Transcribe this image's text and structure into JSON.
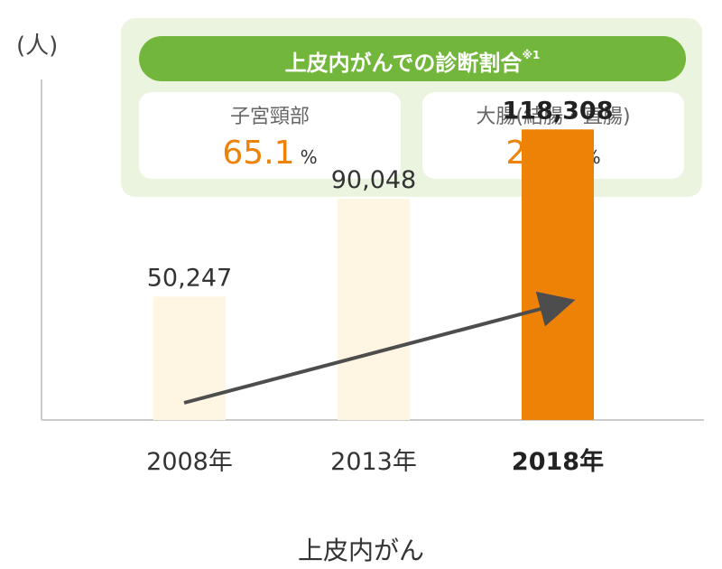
{
  "y_unit": "(人)",
  "callout": {
    "title": "上皮内がんでの診断割合",
    "title_note": "※1",
    "items": [
      {
        "label": "子宮頸部",
        "value": "65.1",
        "unit": "%"
      },
      {
        "label": "大腸(結腸・直腸)",
        "value": "22.4",
        "unit": "%"
      }
    ]
  },
  "colors": {
    "bar_light": "#fff5e3",
    "bar_highlight": "#ee8207",
    "banner": "#72b73c",
    "callout_bg": "#eaf4de",
    "accent_text": "#ee8207",
    "arrow": "#4d4d4d"
  },
  "chart_data": {
    "type": "bar",
    "categories": [
      "2008年",
      "2013年",
      "2018年"
    ],
    "values": [
      50247,
      90048,
      118308
    ],
    "value_labels": [
      "50,247",
      "90,048",
      "118,308"
    ],
    "highlight_index": 2,
    "xlabel": "上皮内がん",
    "ylabel": "(人)",
    "ylim": [
      0,
      171000
    ],
    "grid": false,
    "trend_arrow": true
  }
}
